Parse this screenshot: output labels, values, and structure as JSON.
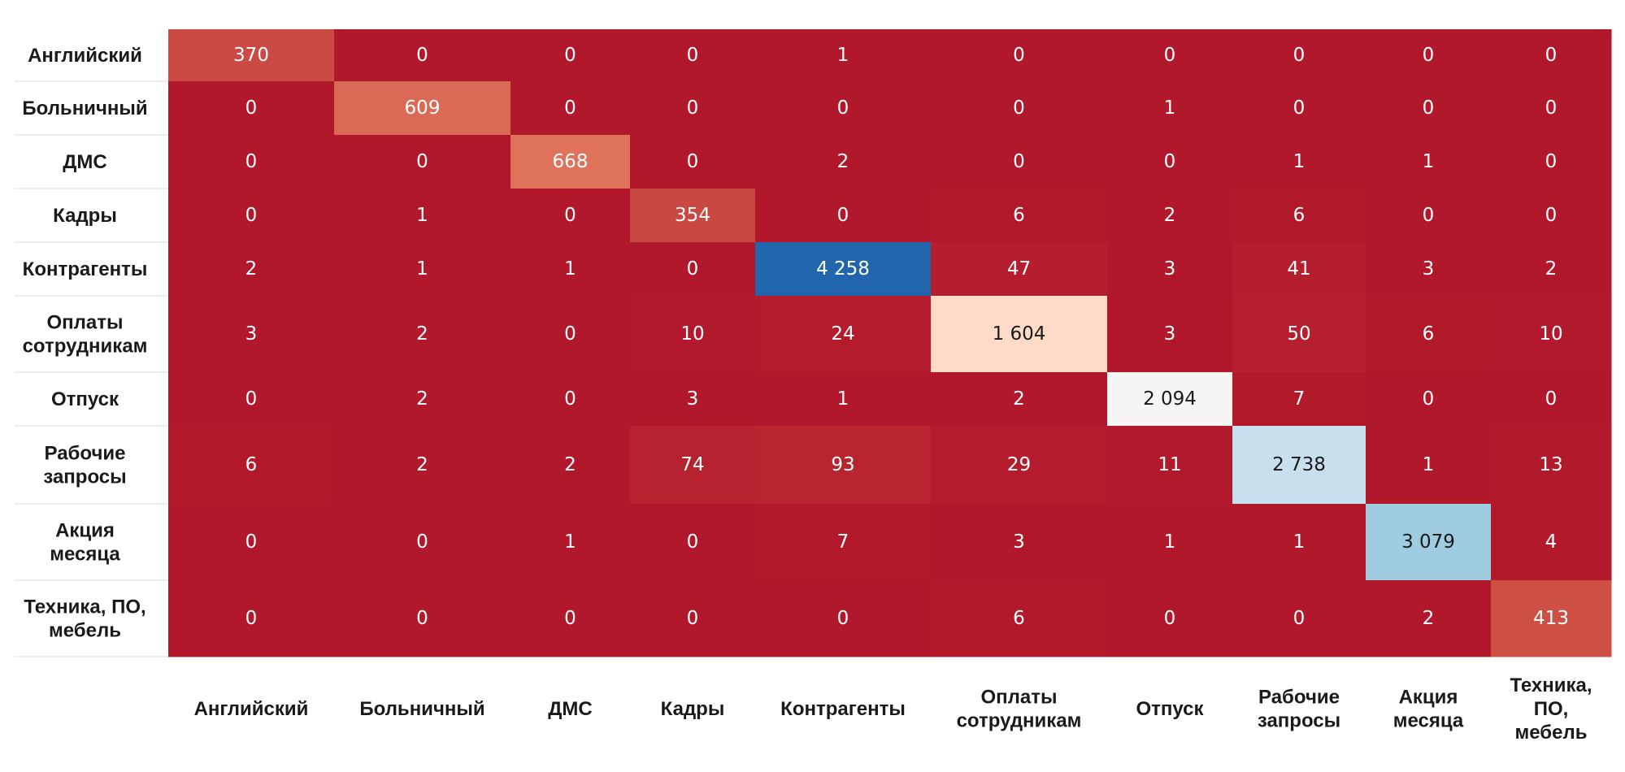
{
  "chart_data": {
    "type": "heatmap",
    "title": "",
    "xlabel": "",
    "ylabel": "",
    "row_labels": [
      [
        "Английский"
      ],
      [
        "Больничный"
      ],
      [
        "ДМС"
      ],
      [
        "Кадры"
      ],
      [
        "Контрагенты"
      ],
      [
        "Оплаты",
        "сотрудникам"
      ],
      [
        "Отпуск"
      ],
      [
        "Рабочие",
        "запросы"
      ],
      [
        "Акция",
        "месяца"
      ],
      [
        "Техника, ПО,",
        "мебель"
      ]
    ],
    "col_labels": [
      [
        "Английский"
      ],
      [
        "Больничный"
      ],
      [
        "ДМС"
      ],
      [
        "Кадры"
      ],
      [
        "Контрагенты"
      ],
      [
        "Оплаты",
        "сотрудникам"
      ],
      [
        "Отпуск"
      ],
      [
        "Рабочие",
        "запросы"
      ],
      [
        "Акция",
        "месяца"
      ],
      [
        "Техника,",
        "ПО,",
        "мебель"
      ]
    ],
    "values": [
      [
        370,
        0,
        0,
        0,
        1,
        0,
        0,
        0,
        0,
        0
      ],
      [
        0,
        609,
        0,
        0,
        0,
        0,
        1,
        0,
        0,
        0
      ],
      [
        0,
        0,
        668,
        0,
        2,
        0,
        0,
        1,
        1,
        0
      ],
      [
        0,
        1,
        0,
        354,
        0,
        6,
        2,
        6,
        0,
        0
      ],
      [
        2,
        1,
        1,
        0,
        4258,
        47,
        3,
        41,
        3,
        2
      ],
      [
        3,
        2,
        0,
        10,
        24,
        1604,
        3,
        50,
        6,
        10
      ],
      [
        0,
        2,
        0,
        3,
        1,
        2,
        2094,
        7,
        0,
        0
      ],
      [
        6,
        2,
        2,
        74,
        93,
        29,
        11,
        2738,
        1,
        13
      ],
      [
        0,
        0,
        1,
        0,
        7,
        3,
        1,
        1,
        3079,
        4
      ],
      [
        0,
        0,
        0,
        0,
        0,
        6,
        0,
        0,
        2,
        413
      ]
    ],
    "cell_labels": [
      [
        "370",
        "0",
        "0",
        "0",
        "1",
        "0",
        "0",
        "0",
        "0",
        "0"
      ],
      [
        "0",
        "609",
        "0",
        "0",
        "0",
        "0",
        "1",
        "0",
        "0",
        "0"
      ],
      [
        "0",
        "0",
        "668",
        "0",
        "2",
        "0",
        "0",
        "1",
        "1",
        "0"
      ],
      [
        "0",
        "1",
        "0",
        "354",
        "0",
        "6",
        "2",
        "6",
        "0",
        "0"
      ],
      [
        "2",
        "1",
        "1",
        "0",
        "4 258",
        "47",
        "3",
        "41",
        "3",
        "2"
      ],
      [
        "3",
        "2",
        "0",
        "10",
        "24",
        "1 604",
        "3",
        "50",
        "6",
        "10"
      ],
      [
        "0",
        "2",
        "0",
        "3",
        "1",
        "2",
        "2 094",
        "7",
        "0",
        "0"
      ],
      [
        "6",
        "2",
        "2",
        "74",
        "93",
        "29",
        "11",
        "2 738",
        "1",
        "13"
      ],
      [
        "0",
        "0",
        "1",
        "0",
        "7",
        "3",
        "1",
        "1",
        "3 079",
        "4"
      ],
      [
        "0",
        "0",
        "0",
        "0",
        "0",
        "6",
        "0",
        "0",
        "2",
        "413"
      ]
    ],
    "colormap": "RdBu",
    "value_range": [
      0,
      4258
    ],
    "colorbar": false,
    "grid": false
  },
  "colors": {
    "text_light": "#ffffff",
    "text_dark": "#1a1a1a"
  }
}
